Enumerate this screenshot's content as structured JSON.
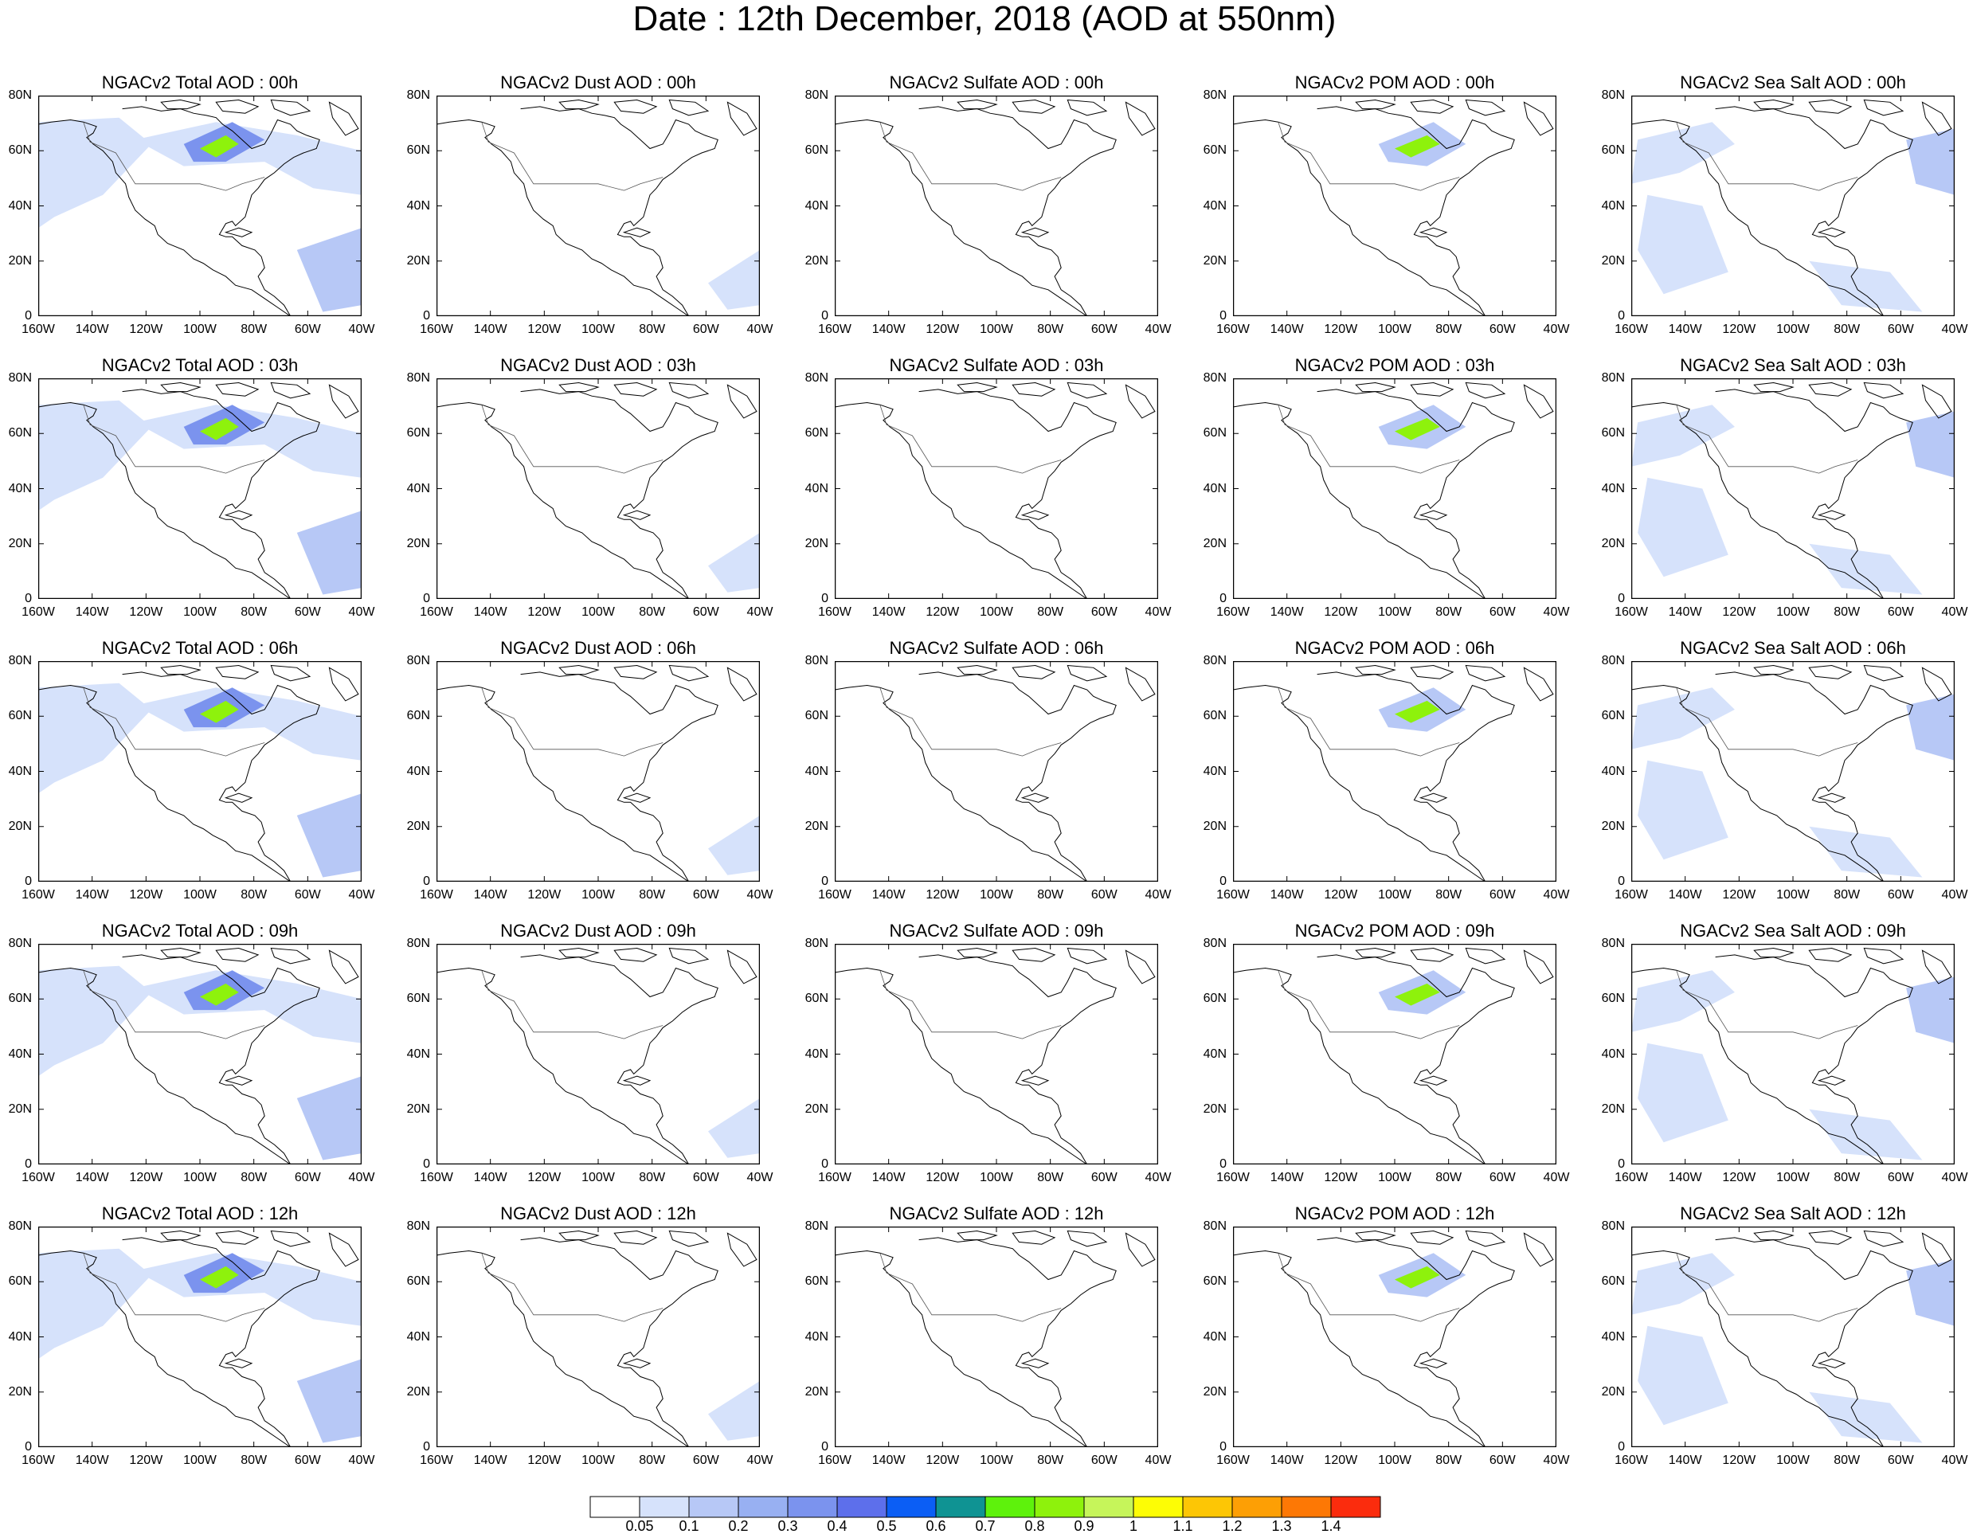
{
  "title": "Date : 12th December, 2018 (AOD at 550nm)",
  "axes": {
    "lat_ticks": [
      "80N",
      "60N",
      "40N",
      "20N",
      "0"
    ],
    "lon_ticks": [
      "160W",
      "140W",
      "120W",
      "100W",
      "80W",
      "60W",
      "40W"
    ],
    "lat_range": [
      0,
      80
    ],
    "lon_range": [
      -160,
      -40
    ]
  },
  "panels": [
    [
      "NGACv2 Total AOD : 00h",
      "NGACv2 Dust AOD : 00h",
      "NGACv2 Sulfate AOD : 00h",
      "NGACv2 POM AOD : 00h",
      "NGACv2 Sea Salt AOD : 00h"
    ],
    [
      "NGACv2 Total AOD : 03h",
      "NGACv2 Dust AOD : 03h",
      "NGACv2 Sulfate AOD : 03h",
      "NGACv2 POM AOD : 03h",
      "NGACv2 Sea Salt AOD : 03h"
    ],
    [
      "NGACv2 Total AOD : 06h",
      "NGACv2 Dust AOD : 06h",
      "NGACv2 Sulfate AOD : 06h",
      "NGACv2 POM AOD : 06h",
      "NGACv2 Sea Salt AOD : 06h"
    ],
    [
      "NGACv2 Total AOD : 09h",
      "NGACv2 Dust AOD : 09h",
      "NGACv2 Sulfate AOD : 09h",
      "NGACv2 POM AOD : 09h",
      "NGACv2 Sea Salt  AOD : 09h"
    ],
    [
      "NGACv2 Total AOD  : 12h",
      "NGACv2 Dust AOD : 12h",
      "NGACv2 Sulfate AOD : 12h",
      "NGACv2 POM  AOD : 12h",
      "NGACv2 Sea Salt  AOD : 12h"
    ]
  ],
  "colorbar": {
    "labels": [
      "0.05",
      "0.1",
      "0.2",
      "0.3",
      "0.4",
      "0.5",
      "0.6",
      "0.7",
      "0.8",
      "0.9",
      "1",
      "1.1",
      "1.2",
      "1.3",
      "1.4"
    ],
    "colors": [
      "#ffffff",
      "#d6e2fb",
      "#b7c8f6",
      "#98b0f2",
      "#7b93ee",
      "#5d6feb",
      "#0b5ef5",
      "#0f9393",
      "#5ef20c",
      "#8ef20c",
      "#c6f55a",
      "#fdfd05",
      "#fdc605",
      "#fd9f05",
      "#fd7805",
      "#fb2c0d"
    ]
  },
  "colors": {
    "land_outline": "#000000",
    "light_aod": "#d6e2fb",
    "medium_aod": "#b7c8f6",
    "dark_aod": "#7b93ee",
    "high_aod": "#8ef20c"
  }
}
